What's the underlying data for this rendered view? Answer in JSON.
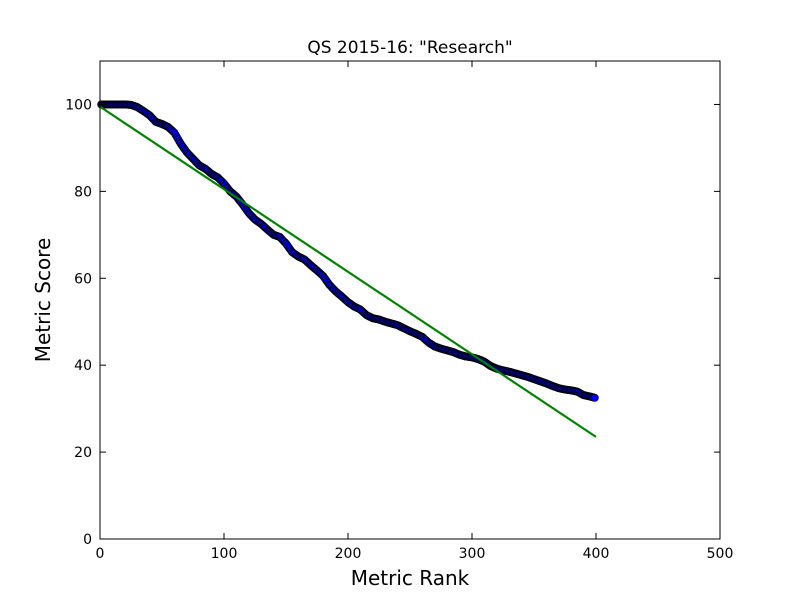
{
  "chart_data": {
    "type": "scatter",
    "title": "QS 2015-16: \"Research\"",
    "xlabel": "Metric Rank",
    "ylabel": "Metric Score",
    "xlim": [
      0,
      500
    ],
    "ylim": [
      0,
      110
    ],
    "xticks": [
      0,
      100,
      200,
      300,
      400,
      500
    ],
    "yticks": [
      0,
      20,
      40,
      60,
      80,
      100
    ],
    "grid": false,
    "series": [
      {
        "kind": "scatter-line",
        "color": "#0000ff",
        "keypoints": [
          [
            1,
            100
          ],
          [
            5,
            100
          ],
          [
            10,
            100
          ],
          [
            15,
            100
          ],
          [
            20,
            100
          ],
          [
            25,
            99.9
          ],
          [
            30,
            99.4
          ],
          [
            35,
            98.5
          ],
          [
            40,
            97.5
          ],
          [
            45,
            96
          ],
          [
            50,
            95.5
          ],
          [
            55,
            94.8
          ],
          [
            60,
            93.5
          ],
          [
            65,
            91
          ],
          [
            70,
            89
          ],
          [
            75,
            87.5
          ],
          [
            80,
            86
          ],
          [
            85,
            85.2
          ],
          [
            90,
            84
          ],
          [
            95,
            83.2
          ],
          [
            100,
            81.8
          ],
          [
            105,
            80
          ],
          [
            110,
            78.8
          ],
          [
            115,
            77
          ],
          [
            120,
            75
          ],
          [
            125,
            73.5
          ],
          [
            130,
            72.5
          ],
          [
            135,
            71.2
          ],
          [
            140,
            70
          ],
          [
            145,
            69.5
          ],
          [
            150,
            68
          ],
          [
            155,
            66
          ],
          [
            160,
            65
          ],
          [
            165,
            64.3
          ],
          [
            170,
            63
          ],
          [
            175,
            61.8
          ],
          [
            180,
            60.5
          ],
          [
            185,
            58.5
          ],
          [
            190,
            57
          ],
          [
            195,
            55.8
          ],
          [
            200,
            54.5
          ],
          [
            205,
            53.5
          ],
          [
            210,
            52.8
          ],
          [
            215,
            51.5
          ],
          [
            220,
            50.8
          ],
          [
            225,
            50.5
          ],
          [
            230,
            50
          ],
          [
            235,
            49.6
          ],
          [
            240,
            49.2
          ],
          [
            245,
            48.5
          ],
          [
            250,
            47.8
          ],
          [
            255,
            47.2
          ],
          [
            260,
            46.5
          ],
          [
            265,
            45.2
          ],
          [
            270,
            44.3
          ],
          [
            275,
            43.8
          ],
          [
            280,
            43.4
          ],
          [
            285,
            43
          ],
          [
            290,
            42.4
          ],
          [
            295,
            42
          ],
          [
            300,
            41.8
          ],
          [
            305,
            41.4
          ],
          [
            310,
            40.8
          ],
          [
            315,
            39.8
          ],
          [
            320,
            39.2
          ],
          [
            325,
            38.8
          ],
          [
            330,
            38.5
          ],
          [
            335,
            38.1
          ],
          [
            340,
            37.7
          ],
          [
            345,
            37.3
          ],
          [
            350,
            36.8
          ],
          [
            355,
            36.3
          ],
          [
            360,
            35.8
          ],
          [
            365,
            35.2
          ],
          [
            370,
            34.7
          ],
          [
            375,
            34.4
          ],
          [
            380,
            34.2
          ],
          [
            385,
            33.9
          ],
          [
            390,
            33.1
          ],
          [
            395,
            32.8
          ],
          [
            399,
            32.5
          ]
        ]
      },
      {
        "kind": "line",
        "color": "#008000",
        "points": [
          [
            0,
            99.5
          ],
          [
            400,
            23.5
          ]
        ]
      }
    ]
  }
}
